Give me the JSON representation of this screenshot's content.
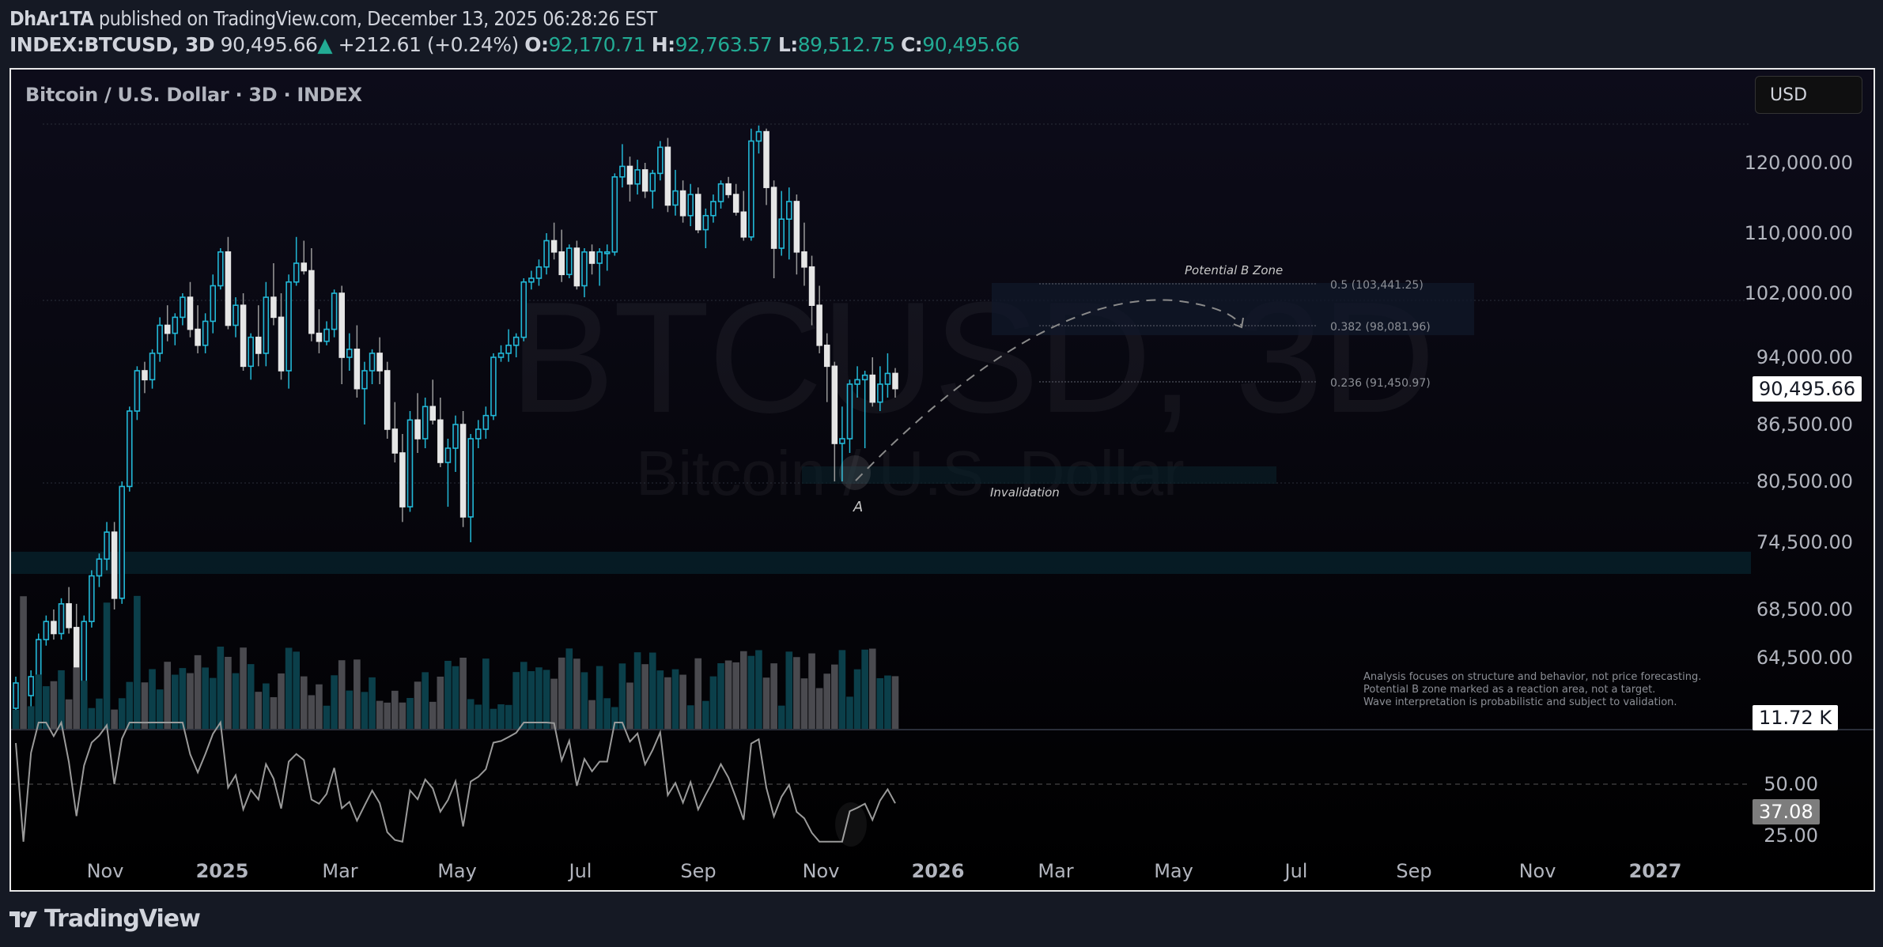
{
  "header": {
    "author": "DhAr1TA",
    "published_text": "published on TradingView.com, December 13, 2025 06:28:26 EST",
    "symbol": "INDEX:BTCUSD, 3D",
    "last_price": "90,495.66",
    "change_arrow": "▲",
    "change": "+212.61 (+0.24%)",
    "open_label": "O:",
    "open": "92,170.71",
    "high_label": "H:",
    "high": "92,763.57",
    "low_label": "L:",
    "low": "89,512.75",
    "close_label": "C:",
    "close": "90,495.66"
  },
  "chart_header": {
    "legend": "Bitcoin / U.S. Dollar · 3D · INDEX",
    "currency_button": "USD"
  },
  "watermark": {
    "line1": "BTCUSD, 3D",
    "line2": "Bitcoin / U.S. Dollar"
  },
  "annotations": {
    "potential_b_zone": "Potential B Zone",
    "invalidation": "Invalidation",
    "wave_a": "A",
    "fib_levels": [
      {
        "label": "0.5 (103,441.25)",
        "price": 103441.25
      },
      {
        "label": "0.382 (98,081.96)",
        "price": 98081.96
      },
      {
        "label": "0.236 (91,450.97)",
        "price": 91450.97
      }
    ],
    "disclaimer": [
      "Analysis focuses on structure and behavior, not price forecasting.",
      "Potential B zone marked as a reaction area, not a target.",
      "Wave interpretation is probabilistic and subject to validation."
    ]
  },
  "price_axis": {
    "ticks": [
      "120,000.00",
      "110,000.00",
      "102,000.00",
      "94,000.00",
      "86,500.00",
      "80,500.00",
      "74,500.00",
      "68,500.00",
      "64,500.00"
    ],
    "last_price_tag": "90,495.66",
    "volume_tag": "11.72 K"
  },
  "rsi_axis": {
    "ticks": [
      "50.00",
      "25.00"
    ],
    "value_tag": "37.08"
  },
  "time_axis": {
    "labels": [
      "Nov",
      "2025",
      "Mar",
      "May",
      "Jul",
      "Sep",
      "Nov",
      "2026",
      "Mar",
      "May",
      "Jul",
      "Sep",
      "Nov",
      "2027"
    ]
  },
  "footer": {
    "brand": "TradingView"
  },
  "colors": {
    "bull": "#22b8d6",
    "bear": "#e6e6e6",
    "vol_bull": "#0b3f4a",
    "vol_bear": "#4a4a4f",
    "accent_green": "#22ab94"
  },
  "chart_data": {
    "type": "candlestick",
    "title": "Bitcoin / U.S. Dollar · 3D · INDEX",
    "symbol": "INDEX:BTCUSD",
    "interval": "3D",
    "ylabel": "USD",
    "ylim": [
      58000,
      128000
    ],
    "x_ticks": [
      "Nov",
      "2025",
      "Mar",
      "May",
      "Jul",
      "Sep",
      "Nov",
      "2026",
      "Mar",
      "May",
      "Jul",
      "Sep",
      "Nov",
      "2027"
    ],
    "y_ticks": [
      120000,
      110000,
      102000,
      94000,
      86500,
      80500,
      74500,
      68500,
      64500
    ],
    "last": {
      "open": 92170.71,
      "high": 92763.57,
      "low": 89512.75,
      "close": 90495.66,
      "change": 212.61,
      "change_pct": 0.24
    },
    "candles_ohlc": [
      [
        60500,
        63000,
        59500,
        62500
      ],
      [
        62500,
        64000,
        61000,
        61500
      ],
      [
        61500,
        63500,
        60000,
        63000
      ],
      [
        63000,
        66500,
        62500,
        66000
      ],
      [
        66000,
        68000,
        65500,
        67500
      ],
      [
        67500,
        68500,
        66000,
        66500
      ],
      [
        66500,
        69500,
        66000,
        69000
      ],
      [
        69000,
        70500,
        66500,
        67000
      ],
      [
        67000,
        69000,
        62000,
        62500
      ],
      [
        62500,
        68000,
        61500,
        67500
      ],
      [
        67500,
        72000,
        67000,
        71500
      ],
      [
        71500,
        73500,
        70500,
        73000
      ],
      [
        73000,
        76500,
        72000,
        75500
      ],
      [
        75500,
        76500,
        68500,
        69500
      ],
      [
        69500,
        80500,
        69000,
        80000
      ],
      [
        80000,
        88500,
        79500,
        88000
      ],
      [
        88000,
        93000,
        87000,
        92500
      ],
      [
        92500,
        93500,
        90000,
        91500
      ],
      [
        91500,
        95000,
        90500,
        94500
      ],
      [
        94500,
        99000,
        93500,
        98000
      ],
      [
        98000,
        100500,
        96000,
        97000
      ],
      [
        97000,
        99500,
        95500,
        99000
      ],
      [
        99000,
        102000,
        98000,
        101500
      ],
      [
        101500,
        103500,
        96500,
        97500
      ],
      [
        97500,
        100500,
        94500,
        95500
      ],
      [
        95500,
        99500,
        94500,
        98500
      ],
      [
        98500,
        104500,
        97000,
        103000
      ],
      [
        103000,
        108000,
        102500,
        107500
      ],
      [
        107500,
        109500,
        97500,
        98000
      ],
      [
        98000,
        101500,
        96500,
        100500
      ],
      [
        100500,
        102000,
        92500,
        93000
      ],
      [
        93000,
        97000,
        91500,
        96500
      ],
      [
        96500,
        100500,
        93000,
        94500
      ],
      [
        94500,
        103500,
        93000,
        101500
      ],
      [
        101500,
        106000,
        98000,
        99000
      ],
      [
        99000,
        102000,
        91500,
        92500
      ],
      [
        92500,
        104500,
        90500,
        103500
      ],
      [
        103500,
        109500,
        103000,
        106000
      ],
      [
        106000,
        109000,
        104500,
        105000
      ],
      [
        105000,
        108000,
        96000,
        97000
      ],
      [
        97000,
        100000,
        94500,
        96000
      ],
      [
        96000,
        98500,
        95500,
        97500
      ],
      [
        97500,
        102500,
        96500,
        102000
      ],
      [
        102000,
        103000,
        91000,
        94000
      ],
      [
        94000,
        97000,
        92500,
        95000
      ],
      [
        95000,
        98000,
        89500,
        90500
      ],
      [
        90500,
        93500,
        86500,
        92500
      ],
      [
        92500,
        95000,
        91000,
        94500
      ],
      [
        94500,
        96500,
        91000,
        92500
      ],
      [
        92500,
        93500,
        85000,
        86000
      ],
      [
        86000,
        89000,
        82500,
        83500
      ],
      [
        83500,
        85500,
        76500,
        78000
      ],
      [
        78000,
        88000,
        77500,
        87000
      ],
      [
        87000,
        90000,
        83500,
        85000
      ],
      [
        85000,
        89500,
        84000,
        88500
      ],
      [
        88500,
        91500,
        86500,
        87000
      ],
      [
        87000,
        89500,
        82000,
        82500
      ],
      [
        82500,
        85000,
        78000,
        84000
      ],
      [
        84000,
        87500,
        81500,
        86500
      ],
      [
        86500,
        88000,
        76000,
        77000
      ],
      [
        77000,
        85500,
        74500,
        85000
      ],
      [
        85000,
        87000,
        84000,
        86000
      ],
      [
        86000,
        88500,
        85000,
        87500
      ],
      [
        87500,
        94500,
        87000,
        94000
      ],
      [
        94000,
        95500,
        93500,
        94500
      ],
      [
        94500,
        97500,
        93500,
        95500
      ],
      [
        95500,
        97000,
        94000,
        96500
      ],
      [
        96500,
        104000,
        96000,
        103500
      ],
      [
        103500,
        105000,
        102500,
        104000
      ],
      [
        104000,
        106500,
        103000,
        105500
      ],
      [
        105500,
        110000,
        104500,
        109000
      ],
      [
        109000,
        111500,
        106500,
        107500
      ],
      [
        107500,
        110500,
        103500,
        104500
      ],
      [
        104500,
        108500,
        104000,
        108000
      ],
      [
        108000,
        109000,
        102500,
        103000
      ],
      [
        103000,
        108000,
        101500,
        107500
      ],
      [
        107500,
        108500,
        104500,
        106000
      ],
      [
        106000,
        108000,
        103000,
        107500
      ],
      [
        107500,
        108500,
        105000,
        107500
      ],
      [
        107500,
        118500,
        107000,
        118000
      ],
      [
        118000,
        123000,
        116500,
        119500
      ],
      [
        119500,
        121000,
        114500,
        117000
      ],
      [
        117000,
        120500,
        115500,
        119000
      ],
      [
        119000,
        120000,
        115000,
        116000
      ],
      [
        116000,
        119000,
        113500,
        118500
      ],
      [
        118500,
        123500,
        117500,
        122500
      ],
      [
        122500,
        124000,
        113000,
        114000
      ],
      [
        114000,
        119000,
        112500,
        116000
      ],
      [
        116000,
        117500,
        111500,
        112500
      ],
      [
        112500,
        117000,
        111000,
        115500
      ],
      [
        115500,
        116500,
        110000,
        110500
      ],
      [
        110500,
        113500,
        108000,
        112500
      ],
      [
        112500,
        115500,
        111500,
        114500
      ],
      [
        114500,
        117500,
        113500,
        117000
      ],
      [
        117000,
        118000,
        115000,
        115500
      ],
      [
        115500,
        117000,
        112500,
        113000
      ],
      [
        113000,
        116000,
        109000,
        109500
      ],
      [
        109500,
        125500,
        109000,
        123500
      ],
      [
        123500,
        126000,
        121500,
        125000
      ],
      [
        125000,
        125500,
        114000,
        116500
      ],
      [
        116500,
        117500,
        104000,
        108000
      ],
      [
        108000,
        116000,
        107000,
        112000
      ],
      [
        112000,
        116500,
        106500,
        114500
      ],
      [
        114500,
        115500,
        104500,
        107500
      ],
      [
        107500,
        111500,
        103000,
        105500
      ],
      [
        105500,
        107000,
        98000,
        100500
      ],
      [
        100500,
        103000,
        94500,
        95500
      ],
      [
        95500,
        97000,
        89000,
        93000
      ],
      [
        93000,
        93500,
        80500,
        84500
      ],
      [
        84500,
        88500,
        80500,
        85000
      ],
      [
        85000,
        91500,
        83500,
        91000
      ],
      [
        91000,
        93000,
        89500,
        91500
      ],
      [
        91500,
        92500,
        84000,
        92000
      ],
      [
        92000,
        94000,
        88500,
        89000
      ],
      [
        89000,
        93000,
        88000,
        91000
      ],
      [
        91000,
        94500,
        89500,
        92200
      ],
      [
        92200,
        92800,
        89500,
        90500
      ]
    ],
    "rsi_ticks": [
      50,
      25
    ],
    "rsi_last": 37.08,
    "volume_last": "11.72 K"
  }
}
